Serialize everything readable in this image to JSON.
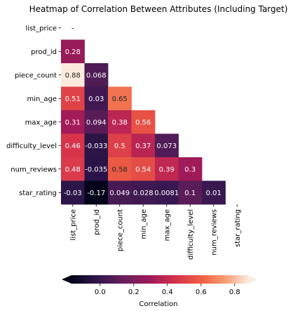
{
  "chart_data": {
    "type": "heatmap",
    "title": "Heatmap of Correlation Between Attributes (Including Target)",
    "labels": [
      "list_price",
      "prod_id",
      "piece_count",
      "min_age",
      "max_age",
      "difficulty_level",
      "num_reviews",
      "star_rating"
    ],
    "mask": "upper-triangle-including-diagonal",
    "values": [
      [
        null,
        null,
        null,
        null,
        null,
        null,
        null,
        null
      ],
      [
        0.28,
        null,
        null,
        null,
        null,
        null,
        null,
        null
      ],
      [
        0.88,
        0.068,
        null,
        null,
        null,
        null,
        null,
        null
      ],
      [
        0.51,
        0.03,
        0.65,
        null,
        null,
        null,
        null,
        null
      ],
      [
        0.31,
        0.094,
        0.38,
        0.56,
        null,
        null,
        null,
        null
      ],
      [
        0.46,
        -0.033,
        0.5,
        0.37,
        0.073,
        null,
        null,
        null
      ],
      [
        0.48,
        -0.035,
        0.58,
        0.54,
        0.39,
        0.3,
        null,
        null
      ],
      [
        -0.03,
        -0.17,
        0.049,
        0.028,
        0.0081,
        0.1,
        0.01,
        null
      ]
    ],
    "annotations": [
      [
        "-",
        "",
        "",
        "",
        "",
        "",
        "",
        ""
      ],
      [
        "0.28",
        "",
        "",
        "",
        "",
        "",
        "",
        ""
      ],
      [
        "0.88",
        "0.068",
        "",
        "",
        "",
        "",
        "",
        ""
      ],
      [
        "0.51",
        "0.03",
        "0.65",
        "",
        "",
        "",
        "",
        ""
      ],
      [
        "0.31",
        "0.094",
        "0.38",
        "0.56",
        "",
        "",
        "",
        ""
      ],
      [
        "0.46",
        "-0.033",
        "0.5",
        "0.37",
        "0.073",
        "",
        "",
        ""
      ],
      [
        "0.48",
        "-0.035",
        "0.58",
        "0.54",
        "0.39",
        "0.3",
        "",
        ""
      ],
      [
        "-0.03",
        "-0.17",
        "0.049",
        "0.028",
        "0.0081",
        "0.1",
        "0.01",
        ""
      ]
    ],
    "colormap": "rocket",
    "color_range": [
      -0.17,
      0.88
    ],
    "colorbar": {
      "label": "Correlation",
      "ticks": [
        0.0,
        0.2,
        0.4,
        0.6,
        0.8
      ],
      "tick_labels": [
        "0.0",
        "0.2",
        "0.4",
        "0.6",
        "0.8"
      ],
      "orientation": "horizontal",
      "extend": "both"
    }
  }
}
